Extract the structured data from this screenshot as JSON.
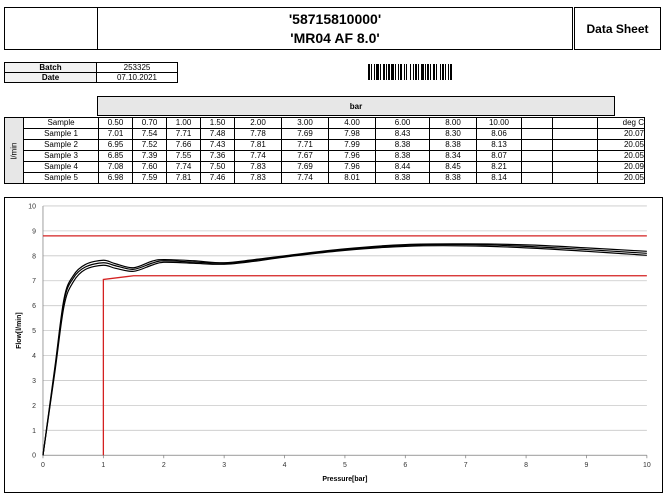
{
  "header": {
    "part_number": "'58715810000'",
    "product": "'MR04 AF 8.0'",
    "doc_type": "Data Sheet"
  },
  "meta": {
    "batch_label": "Batch",
    "batch_value": "253325",
    "date_label": "Date",
    "date_value": "07.10.2021"
  },
  "table": {
    "group_header": "bar",
    "unit_label": "l/min",
    "sample_header": "Sample",
    "pressures": [
      "0.50",
      "0.70",
      "1.00",
      "1.50",
      "2.00",
      "3.00",
      "4.00",
      "6.00",
      "8.00",
      "10.00",
      "",
      ""
    ],
    "temp_header": "deg C",
    "rows": [
      {
        "name": "Sample 1",
        "values": [
          "7.01",
          "7.54",
          "7.71",
          "7.48",
          "7.78",
          "7.69",
          "7.98",
          "8.43",
          "8.30",
          "8.06",
          "",
          ""
        ],
        "temp": "20.07"
      },
      {
        "name": "Sample 2",
        "values": [
          "6.95",
          "7.52",
          "7.66",
          "7.43",
          "7.81",
          "7.71",
          "7.99",
          "8.38",
          "8.38",
          "8.13",
          "",
          ""
        ],
        "temp": "20.05"
      },
      {
        "name": "Sample 3",
        "values": [
          "6.85",
          "7.39",
          "7.55",
          "7.36",
          "7.74",
          "7.67",
          "7.96",
          "8.38",
          "8.34",
          "8.07",
          "",
          ""
        ],
        "temp": "20.05"
      },
      {
        "name": "Sample 4",
        "values": [
          "7.08",
          "7.60",
          "7.74",
          "7.50",
          "7.83",
          "7.69",
          "7.96",
          "8.44",
          "8.45",
          "8.21",
          "",
          ""
        ],
        "temp": "20.09"
      },
      {
        "name": "Sample 5",
        "values": [
          "6.98",
          "7.59",
          "7.81",
          "7.46",
          "7.83",
          "7.74",
          "8.01",
          "8.38",
          "8.38",
          "8.14",
          "",
          ""
        ],
        "temp": "20.05"
      }
    ]
  },
  "chart_data": {
    "type": "line",
    "xlabel": "Pressure[bar]",
    "ylabel": "Flow[l/min]",
    "xlim": [
      0,
      10
    ],
    "ylim": [
      0,
      10
    ],
    "xticks": [
      "0",
      "1",
      "2",
      "3",
      "4",
      "5",
      "6",
      "7",
      "8",
      "9",
      "10"
    ],
    "yticks": [
      "0",
      "1",
      "2",
      "3",
      "4",
      "5",
      "6",
      "7",
      "8",
      "9",
      "10"
    ],
    "grid": true,
    "series": [
      {
        "color": "#000000",
        "x": [
          0,
          0.2,
          0.35,
          0.5,
          0.7,
          1.0,
          1.2,
          1.5,
          1.8,
          2.0,
          2.5,
          3.0,
          3.5,
          4.0,
          5.0,
          6.0,
          7.0,
          8.0,
          9.0,
          10.0
        ],
        "y": [
          0,
          3.5,
          6.2,
          7.1,
          7.55,
          7.72,
          7.6,
          7.46,
          7.7,
          7.8,
          7.75,
          7.7,
          7.82,
          7.98,
          8.25,
          8.42,
          8.45,
          8.38,
          8.25,
          8.1
        ]
      },
      {
        "color": "#000000",
        "x": [
          0,
          0.2,
          0.35,
          0.5,
          0.7,
          1.0,
          1.2,
          1.5,
          1.8,
          2.0,
          2.5,
          3.0,
          3.5,
          4.0,
          5.0,
          6.0,
          7.0,
          8.0,
          9.0,
          10.0
        ],
        "y": [
          0,
          3.4,
          6.0,
          6.95,
          7.45,
          7.62,
          7.5,
          7.38,
          7.62,
          7.74,
          7.7,
          7.66,
          7.78,
          7.95,
          8.22,
          8.38,
          8.4,
          8.32,
          8.18,
          8.02
        ]
      },
      {
        "color": "#000000",
        "x": [
          0,
          0.2,
          0.35,
          0.5,
          0.7,
          1.0,
          1.2,
          1.5,
          1.8,
          2.0,
          2.5,
          3.0,
          3.5,
          4.0,
          5.0,
          6.0,
          7.0,
          8.0,
          9.0,
          10.0
        ],
        "y": [
          0,
          3.6,
          6.3,
          7.2,
          7.65,
          7.82,
          7.68,
          7.52,
          7.78,
          7.85,
          7.8,
          7.72,
          7.85,
          8.0,
          8.28,
          8.45,
          8.48,
          8.44,
          8.32,
          8.18
        ]
      }
    ],
    "limits": [
      {
        "color": "#d42020",
        "points": [
          [
            0,
            8.8
          ],
          [
            10,
            8.8
          ]
        ]
      },
      {
        "color": "#d42020",
        "points": [
          [
            1,
            0
          ],
          [
            1,
            7.05
          ],
          [
            1.5,
            7.2
          ],
          [
            10,
            7.2
          ]
        ]
      }
    ]
  }
}
